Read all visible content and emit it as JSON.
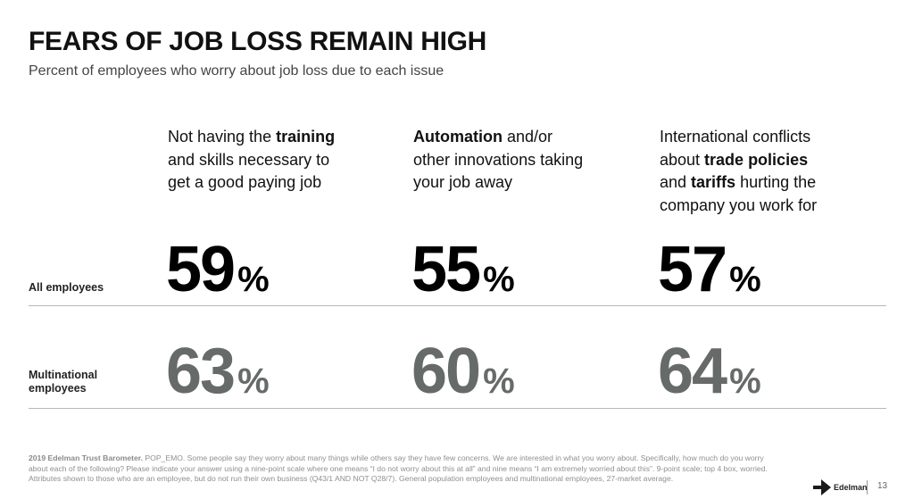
{
  "slide": {
    "title": "FEARS OF JOB LOSS REMAIN HIGH",
    "subtitle": "Percent of employees who worry about job loss due to each issue"
  },
  "issues": [
    {
      "lines": [
        [
          {
            "t": "Not having the "
          },
          {
            "t": "training",
            "b": true
          }
        ],
        [
          {
            "t": "and skills necessary to"
          }
        ],
        [
          {
            "t": "get a good paying job"
          }
        ]
      ]
    },
    {
      "lines": [
        [
          {
            "t": "Automation",
            "b": true
          },
          {
            "t": " and/or"
          }
        ],
        [
          {
            "t": "other innovations taking"
          }
        ],
        [
          {
            "t": "your job away"
          }
        ]
      ]
    },
    {
      "lines": [
        [
          {
            "t": "International conflicts"
          }
        ],
        [
          {
            "t": "about "
          },
          {
            "t": "trade policies",
            "b": true
          }
        ],
        [
          {
            "t": "and "
          },
          {
            "t": "tariffs",
            "b": true
          },
          {
            "t": " hurting the"
          }
        ],
        [
          {
            "t": "company you work for"
          }
        ]
      ]
    }
  ],
  "rows": {
    "all": {
      "label": "All employees",
      "values": [
        "59",
        "55",
        "57"
      ]
    },
    "multi": {
      "label_lines": [
        "Multinational",
        "employees"
      ],
      "values": [
        "63",
        "60",
        "64"
      ]
    },
    "unit": "%"
  },
  "footnote": {
    "source": "2019 Edelman Trust Barometer.",
    "text": " POP_EMO. Some people say they worry about many things while others say they have few concerns. We are interested in what you worry about. Specifically, how much do you worry about each of the following? Please indicate your answer using a nine-point scale where one means “I do not worry about this at all” and nine means “I am extremely worried about this”. 9-point scale; top 4 box, worried. Attributes shown to those who are an employee, but do not run their own business (Q43/1 AND NOT Q28/7). General population employees and multinational employees, 27-market average."
  },
  "brand": {
    "name": "Edelman",
    "icon": "edelman-logo-icon",
    "page": "13"
  },
  "colors": {
    "all": "#000000",
    "multi": "#666b69",
    "rule": "#b8b8b8",
    "footnote": "#8f8f8f"
  }
}
